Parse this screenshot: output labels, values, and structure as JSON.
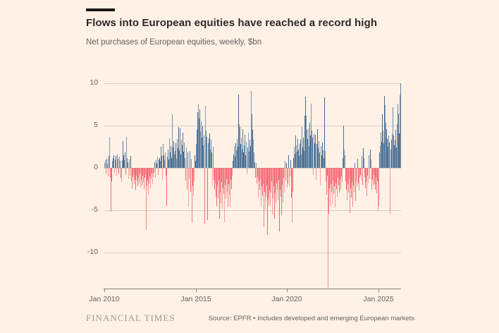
{
  "header": {
    "title": "Flows into European equities have reached a record high",
    "subtitle": "Net purchases of European equities, weekly, $bn"
  },
  "footer": {
    "brand": "FINANCIAL TIMES",
    "source": "Source: EPFR • Includes developed and emerging European markets"
  },
  "colors": {
    "background": "#FFF1E5",
    "positive_bar": "#35618C",
    "negative_bar": "#F2606C",
    "grid": "#DCCFC2",
    "axis": "#8A8178",
    "tick_text": "#66605C"
  },
  "chart_data": {
    "type": "bar",
    "title": "Flows into European equities have reached a record high",
    "subtitle": "Net purchases of European equities, weekly, $bn",
    "ylabel": "$bn",
    "ylim": [
      -14.33,
      10.67
    ],
    "yticks": [
      10,
      5,
      0,
      -5,
      -10
    ],
    "grid": "horizontal",
    "legend": "none",
    "xticks": [
      {
        "label": "Jan 2010",
        "index": 0
      },
      {
        "label": "Jan 2015",
        "index": 130
      },
      {
        "label": "Jan 2020",
        "index": 259
      },
      {
        "label": "Jan 2025",
        "index": 389
      }
    ],
    "values": [
      0.6,
      0.9,
      -0.7,
      1.1,
      0.5,
      -1.0,
      1.4,
      3.7,
      -1.2,
      -5.2,
      -1.6,
      0.8,
      1.2,
      1.5,
      -0.6,
      1.0,
      1.4,
      -0.9,
      1.6,
      1.1,
      -0.7,
      1.3,
      0.8,
      -1.2,
      -1.7,
      0.9,
      3.2,
      1.5,
      0.9,
      1.8,
      -0.8,
      3.7,
      1.2,
      0.7,
      -1.3,
      1.0,
      -0.9,
      1.4,
      -1.6,
      -2.4,
      -1.1,
      -0.8,
      -1.9,
      -1.4,
      -2.6,
      -0.9,
      -1.5,
      -2.2,
      -1.2,
      -1.8,
      -0.7,
      -2.3,
      -1.4,
      -2.1,
      -0.9,
      -1.7,
      -2.5,
      -1.2,
      -0.8,
      -7.3,
      -2.2,
      -1.5,
      -3.2,
      -1.8,
      -1.0,
      -2.4,
      -1.3,
      -0.7,
      -1.9,
      -1.1,
      -0.6,
      0.7,
      -1.2,
      0.9,
      0.5,
      1.3,
      -0.8,
      1.0,
      1.2,
      0.8,
      2.5,
      1.4,
      -1.4,
      2.8,
      1.5,
      0.9,
      1.8,
      -0.9,
      -4.5,
      1.3,
      2.2,
      1.0,
      3.5,
      1.8,
      2.6,
      1.2,
      6.3,
      2.4,
      3.2,
      1.6,
      2.0,
      2.9,
      1.1,
      3.4,
      2.3,
      4.8,
      2.1,
      4.7,
      1.6,
      3.3,
      2.7,
      4.2,
      1.9,
      3.0,
      1.2,
      -1.5,
      2.4,
      -2.5,
      1.8,
      -4.6,
      -1.3,
      2.0,
      -2.8,
      1.1,
      -6.5,
      -2.2,
      -3.3,
      -1.6,
      1.5,
      0.8,
      2.8,
      4.5,
      6.6,
      7.6,
      5.8,
      6.9,
      4.3,
      5.5,
      3.6,
      4.9,
      2.7,
      3.8,
      -6.6,
      7.3,
      4.4,
      3.7,
      -6.2,
      2.9,
      3.5,
      4.1,
      2.2,
      3.3,
      1.8,
      -2.1,
      2.5,
      -1.4,
      -2.6,
      -1.8,
      -3.4,
      -4.5,
      -2.2,
      -3.6,
      -1.5,
      -6.0,
      -2.9,
      -4.2,
      -1.7,
      -4.8,
      -2.4,
      -3.1,
      -6.4,
      -2.0,
      -3.7,
      -1.3,
      -2.8,
      -4.6,
      -1.9,
      -3.2,
      -4.6,
      -1.4,
      -2.5,
      -0.9,
      0.8,
      1.6,
      2.6,
      1.3,
      2.9,
      2.1,
      3.4,
      2.5,
      8.7,
      5.2,
      4.8,
      2.8,
      3.6,
      2.2,
      4.6,
      1.8,
      2.7,
      3.9,
      1.5,
      3.1,
      -0.7,
      2.4,
      4.2,
      1.9,
      3.3,
      2.6,
      9.1,
      6.3,
      4.5,
      3.3,
      1.8,
      0.7,
      -1.2,
      0.6,
      -1.8,
      -1.1,
      -3.5,
      -1.6,
      -2.6,
      -1.3,
      -4.5,
      -2.2,
      -3.3,
      -1.9,
      -7.0,
      -2.8,
      -4.9,
      -3.4,
      -2.1,
      -7.9,
      -3.6,
      -4.4,
      -2.7,
      -4.5,
      -2.9,
      -1.6,
      -5.5,
      -3.6,
      -2.2,
      -6.0,
      -3.0,
      -4.2,
      -1.8,
      -2.5,
      -3.8,
      -1.4,
      -7.5,
      -2.6,
      -3.4,
      -5.6,
      -2.0,
      -4.1,
      -1.2,
      -2.9,
      0.8,
      -1.5,
      0.6,
      -2.3,
      -1.8,
      1.5,
      -2.2,
      -1.0,
      0.9,
      -3.5,
      -6.4,
      -2.8,
      1.2,
      2.5,
      1.7,
      3.8,
      2.7,
      1.9,
      3.4,
      2.2,
      1.4,
      2.8,
      3.3,
      1.6,
      4.8,
      2.4,
      3.6,
      2.0,
      6.2,
      8.4,
      6.2,
      4.5,
      3.4,
      4.7,
      2.6,
      5.3,
      3.8,
      7.6,
      4.4,
      3.6,
      -0.8,
      4.0,
      2.9,
      3.9,
      -1.4,
      2.8,
      4.6,
      2.3,
      3.2,
      1.8,
      -2.0,
      2.6,
      1.5,
      3.0,
      2.1,
      1.2,
      8.3,
      2.0,
      -1.6,
      -3.2,
      -0.9,
      -14.2,
      -5.4,
      -2.4,
      -4.5,
      -1.9,
      -2.8,
      -4.3,
      -1.5,
      -3.1,
      -2.2,
      -4.7,
      -1.8,
      -2.5,
      -3.4,
      -1.2,
      -2.0,
      -2.9,
      -1.4,
      -2.6,
      -1.0,
      -1.7,
      1.2,
      5.0,
      2.2,
      1.5,
      -1.6,
      -2.6,
      -3.8,
      -1.9,
      -2.9,
      -1.3,
      -5.3,
      -2.4,
      -3.5,
      -1.7,
      -4.6,
      -2.1,
      -2.8,
      0.6,
      -3.9,
      -1.5,
      -2.2,
      1.1,
      -1.8,
      -2.7,
      -1.2,
      -0.8,
      -1.5,
      1.4,
      -2.0,
      2.3,
      1.2,
      -1.1,
      -2.4,
      -1.6,
      -3.3,
      -0.9,
      -1.8,
      1.5,
      -1.3,
      2.2,
      1.0,
      -2.6,
      -1.4,
      -2.1,
      -0.8,
      -1.9,
      -2.6,
      -1.2,
      -3.0,
      -1.6,
      -5.1,
      -4.5,
      1.8,
      2.6,
      4.2,
      3.1,
      6.3,
      4.4,
      2.9,
      8.5,
      7.4,
      5.3,
      4.6,
      3.4,
      2.5,
      3.8,
      3.0,
      -5.4,
      2.2,
      3.3,
      4.0,
      7.2,
      3.8,
      2.7,
      3.3,
      4.5,
      2.4,
      5.2,
      7.6,
      6.4,
      4.1,
      8.6,
      10.0
    ]
  }
}
